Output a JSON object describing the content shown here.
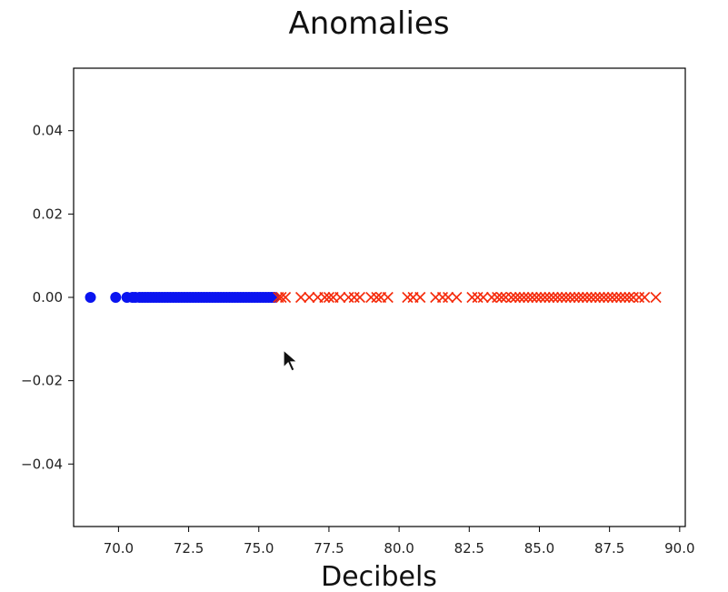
{
  "chart_data": {
    "type": "scatter",
    "title": "Anomalies",
    "xlabel": "Decibels",
    "ylabel": "",
    "xlim": [
      68.4,
      90.2
    ],
    "ylim": [
      -0.055,
      0.055
    ],
    "xticks": [
      "70.0",
      "72.5",
      "75.0",
      "77.5",
      "80.0",
      "82.5",
      "85.0",
      "87.5",
      "90.0"
    ],
    "yticks": [
      "0.04",
      "0.02",
      "0.00",
      "−0.02",
      "−0.04"
    ],
    "xtick_values": [
      70.0,
      72.5,
      75.0,
      77.5,
      80.0,
      82.5,
      85.0,
      87.5,
      90.0
    ],
    "ytick_values": [
      0.04,
      0.02,
      0.0,
      -0.02,
      -0.04
    ],
    "grid": false,
    "legend": "none",
    "series": [
      {
        "marker": "circle",
        "color": "#0a14f0",
        "values": [
          [
            69.0,
            0
          ],
          [
            69.9,
            0
          ],
          [
            70.3,
            0
          ],
          [
            70.5,
            0
          ],
          [
            70.6,
            0
          ],
          [
            70.75,
            0
          ],
          [
            70.85,
            0
          ],
          [
            70.95,
            0
          ],
          [
            71.05,
            0
          ],
          [
            71.15,
            0
          ],
          [
            71.25,
            0
          ],
          [
            71.35,
            0
          ],
          [
            71.45,
            0
          ],
          [
            71.55,
            0
          ],
          [
            71.65,
            0
          ],
          [
            71.75,
            0
          ],
          [
            71.85,
            0
          ],
          [
            71.95,
            0
          ],
          [
            72.05,
            0
          ],
          [
            72.15,
            0
          ],
          [
            72.25,
            0
          ],
          [
            72.35,
            0
          ],
          [
            72.45,
            0
          ],
          [
            72.55,
            0
          ],
          [
            72.65,
            0
          ],
          [
            72.75,
            0
          ],
          [
            72.85,
            0
          ],
          [
            72.95,
            0
          ],
          [
            73.05,
            0
          ],
          [
            73.15,
            0
          ],
          [
            73.25,
            0
          ],
          [
            73.35,
            0
          ],
          [
            73.45,
            0
          ],
          [
            73.55,
            0
          ],
          [
            73.65,
            0
          ],
          [
            73.75,
            0
          ],
          [
            73.85,
            0
          ],
          [
            73.95,
            0
          ],
          [
            74.05,
            0
          ],
          [
            74.15,
            0
          ],
          [
            74.25,
            0
          ],
          [
            74.35,
            0
          ],
          [
            74.45,
            0
          ],
          [
            74.55,
            0
          ],
          [
            74.65,
            0
          ],
          [
            74.75,
            0
          ],
          [
            74.85,
            0
          ],
          [
            74.95,
            0
          ],
          [
            75.05,
            0
          ],
          [
            75.15,
            0
          ],
          [
            75.25,
            0
          ],
          [
            75.35,
            0
          ],
          [
            75.45,
            0
          ],
          [
            75.55,
            0
          ]
        ]
      },
      {
        "marker": "x",
        "color": "#f52a0a",
        "values": [
          [
            75.7,
            0
          ],
          [
            75.8,
            0
          ],
          [
            75.95,
            0
          ],
          [
            76.5,
            0
          ],
          [
            76.8,
            0
          ],
          [
            77.1,
            0
          ],
          [
            77.35,
            0
          ],
          [
            77.5,
            0
          ],
          [
            77.65,
            0
          ],
          [
            77.9,
            0
          ],
          [
            78.2,
            0
          ],
          [
            78.4,
            0
          ],
          [
            78.6,
            0
          ],
          [
            79.0,
            0
          ],
          [
            79.2,
            0
          ],
          [
            79.35,
            0
          ],
          [
            79.6,
            0
          ],
          [
            80.3,
            0
          ],
          [
            80.5,
            0
          ],
          [
            80.75,
            0
          ],
          [
            81.3,
            0
          ],
          [
            81.55,
            0
          ],
          [
            81.75,
            0
          ],
          [
            82.05,
            0
          ],
          [
            82.6,
            0
          ],
          [
            82.8,
            0
          ],
          [
            83.0,
            0
          ],
          [
            83.3,
            0
          ],
          [
            83.5,
            0
          ],
          [
            83.65,
            0
          ],
          [
            83.8,
            0
          ],
          [
            84.0,
            0
          ],
          [
            84.15,
            0
          ],
          [
            84.3,
            0
          ],
          [
            84.45,
            0
          ],
          [
            84.6,
            0
          ],
          [
            84.75,
            0
          ],
          [
            84.9,
            0
          ],
          [
            85.05,
            0
          ],
          [
            85.2,
            0
          ],
          [
            85.35,
            0
          ],
          [
            85.5,
            0
          ],
          [
            85.65,
            0
          ],
          [
            85.8,
            0
          ],
          [
            85.95,
            0
          ],
          [
            86.1,
            0
          ],
          [
            86.25,
            0
          ],
          [
            86.4,
            0
          ],
          [
            86.55,
            0
          ],
          [
            86.7,
            0
          ],
          [
            86.85,
            0
          ],
          [
            87.0,
            0
          ],
          [
            87.15,
            0
          ],
          [
            87.3,
            0
          ],
          [
            87.45,
            0
          ],
          [
            87.6,
            0
          ],
          [
            87.75,
            0
          ],
          [
            87.9,
            0
          ],
          [
            88.05,
            0
          ],
          [
            88.2,
            0
          ],
          [
            88.35,
            0
          ],
          [
            88.55,
            0
          ],
          [
            88.75,
            0
          ],
          [
            89.15,
            0
          ]
        ]
      }
    ]
  }
}
